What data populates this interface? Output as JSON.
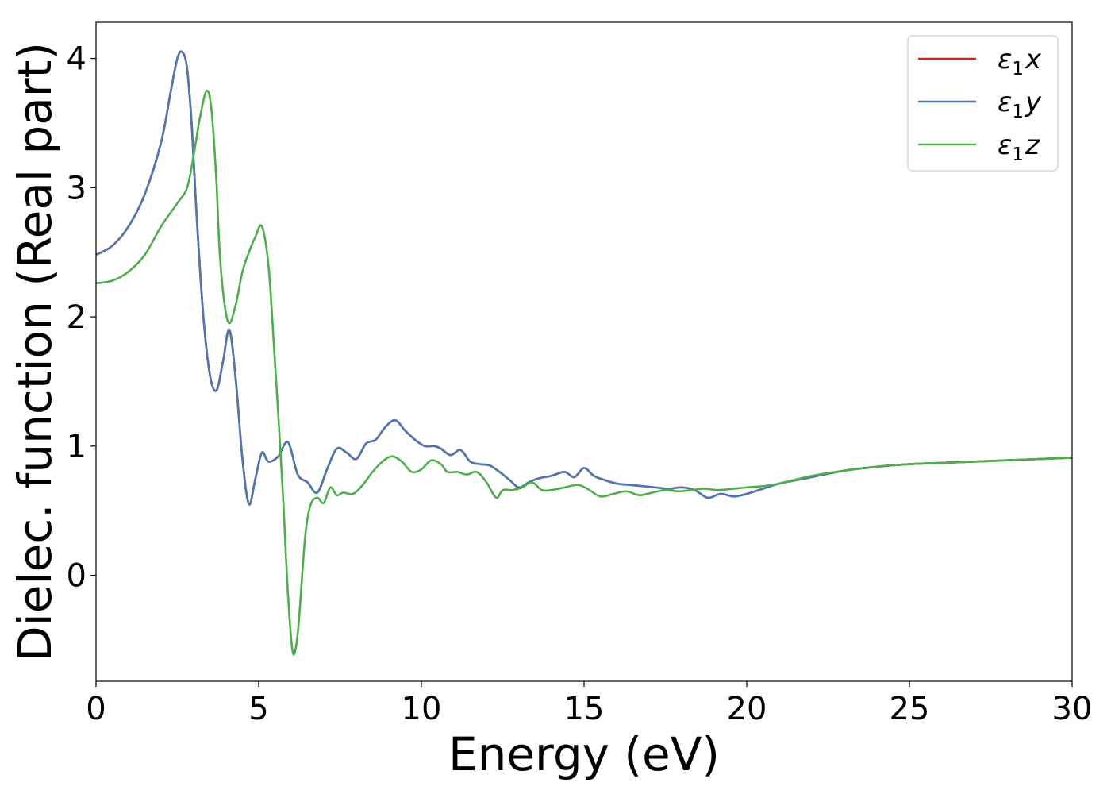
{
  "chart_data": {
    "type": "line",
    "xlabel": "Energy (eV)",
    "ylabel": "Dielec. function (Real part)",
    "xlim": [
      0,
      30
    ],
    "ylim": [
      -0.82,
      4.28
    ],
    "xticks": [
      0,
      5,
      10,
      15,
      20,
      25,
      30
    ],
    "yticks": [
      0,
      1,
      2,
      3,
      4
    ],
    "grid": false,
    "legend_position": "top-right",
    "series": [
      {
        "name": "ε₁x",
        "legend_base": "ε",
        "legend_sub": "1",
        "legend_suffix": "x",
        "color": "#e41a1c",
        "x": [
          0,
          0.5,
          1,
          1.5,
          2,
          2.3,
          2.5,
          2.65,
          2.8,
          2.95,
          3.1,
          3.3,
          3.5,
          3.7,
          3.9,
          4.1,
          4.3,
          4.5,
          4.7,
          4.9,
          5.1,
          5.3,
          5.6,
          5.9,
          6.2,
          6.5,
          6.8,
          7.1,
          7.4,
          7.7,
          8.0,
          8.3,
          8.6,
          8.9,
          9.2,
          9.5,
          9.8,
          10.1,
          10.4,
          10.6,
          10.9,
          11.2,
          11.5,
          11.8,
          12.1,
          12.4,
          12.7,
          13.0,
          13.3,
          13.6,
          14.0,
          14.4,
          14.7,
          15.0,
          15.3,
          15.6,
          16.0,
          16.4,
          16.8,
          17.2,
          17.6,
          18.0,
          18.4,
          18.8,
          19.2,
          19.6,
          20.0,
          20.5,
          21.0,
          22.0,
          23.0,
          24.0,
          25.0,
          26.0,
          27.0,
          28.0,
          29.0,
          30.0
        ],
        "y": [
          2.48,
          2.55,
          2.7,
          2.95,
          3.35,
          3.75,
          4.0,
          4.05,
          3.92,
          3.45,
          2.75,
          2.0,
          1.55,
          1.43,
          1.65,
          1.9,
          1.5,
          0.9,
          0.55,
          0.75,
          0.95,
          0.88,
          0.92,
          1.03,
          0.78,
          0.72,
          0.64,
          0.82,
          0.98,
          0.95,
          0.9,
          1.02,
          1.05,
          1.15,
          1.2,
          1.12,
          1.05,
          1.0,
          1.0,
          0.98,
          0.93,
          0.97,
          0.88,
          0.86,
          0.85,
          0.8,
          0.74,
          0.68,
          0.72,
          0.75,
          0.77,
          0.8,
          0.76,
          0.83,
          0.77,
          0.74,
          0.71,
          0.7,
          0.69,
          0.68,
          0.67,
          0.68,
          0.66,
          0.6,
          0.63,
          0.61,
          0.63,
          0.67,
          0.71,
          0.76,
          0.81,
          0.84,
          0.86,
          0.87,
          0.88,
          0.89,
          0.9,
          0.91
        ]
      },
      {
        "name": "ε₁y",
        "legend_base": "ε",
        "legend_sub": "1",
        "legend_suffix": "y",
        "color": "#4a78b1",
        "x": [
          0,
          0.5,
          1,
          1.5,
          2,
          2.3,
          2.5,
          2.65,
          2.8,
          2.95,
          3.1,
          3.3,
          3.5,
          3.7,
          3.9,
          4.1,
          4.3,
          4.5,
          4.7,
          4.9,
          5.1,
          5.3,
          5.6,
          5.9,
          6.2,
          6.5,
          6.8,
          7.1,
          7.4,
          7.7,
          8.0,
          8.3,
          8.6,
          8.9,
          9.2,
          9.5,
          9.8,
          10.1,
          10.4,
          10.6,
          10.9,
          11.2,
          11.5,
          11.8,
          12.1,
          12.4,
          12.7,
          13.0,
          13.3,
          13.6,
          14.0,
          14.4,
          14.7,
          15.0,
          15.3,
          15.6,
          16.0,
          16.4,
          16.8,
          17.2,
          17.6,
          18.0,
          18.4,
          18.8,
          19.2,
          19.6,
          20.0,
          20.5,
          21.0,
          22.0,
          23.0,
          24.0,
          25.0,
          26.0,
          27.0,
          28.0,
          29.0,
          30.0
        ],
        "y": [
          2.48,
          2.55,
          2.7,
          2.95,
          3.35,
          3.75,
          4.0,
          4.05,
          3.92,
          3.45,
          2.75,
          2.0,
          1.55,
          1.43,
          1.65,
          1.9,
          1.5,
          0.9,
          0.55,
          0.75,
          0.95,
          0.88,
          0.92,
          1.03,
          0.78,
          0.72,
          0.64,
          0.82,
          0.98,
          0.95,
          0.9,
          1.02,
          1.05,
          1.15,
          1.2,
          1.12,
          1.05,
          1.0,
          1.0,
          0.98,
          0.93,
          0.97,
          0.88,
          0.86,
          0.85,
          0.8,
          0.74,
          0.68,
          0.72,
          0.75,
          0.77,
          0.8,
          0.76,
          0.83,
          0.77,
          0.74,
          0.71,
          0.7,
          0.69,
          0.68,
          0.67,
          0.68,
          0.66,
          0.6,
          0.63,
          0.61,
          0.63,
          0.67,
          0.71,
          0.76,
          0.81,
          0.84,
          0.86,
          0.87,
          0.88,
          0.89,
          0.9,
          0.91
        ]
      },
      {
        "name": "ε₁z",
        "legend_base": "ε",
        "legend_sub": "1",
        "legend_suffix": "z",
        "color": "#4daf4a",
        "x": [
          0,
          0.5,
          1,
          1.5,
          2,
          2.5,
          2.8,
          3.0,
          3.2,
          3.4,
          3.55,
          3.7,
          3.8,
          3.95,
          4.1,
          4.3,
          4.5,
          4.7,
          4.9,
          5.1,
          5.3,
          5.45,
          5.6,
          5.75,
          5.9,
          6.05,
          6.2,
          6.35,
          6.45,
          6.6,
          6.8,
          7.0,
          7.2,
          7.4,
          7.6,
          7.9,
          8.2,
          8.5,
          8.8,
          9.1,
          9.4,
          9.7,
          10.0,
          10.3,
          10.6,
          10.8,
          11.1,
          11.4,
          11.7,
          12.0,
          12.3,
          12.5,
          12.8,
          13.1,
          13.4,
          13.7,
          14.0,
          14.4,
          14.8,
          15.1,
          15.5,
          15.9,
          16.3,
          16.7,
          17.1,
          17.5,
          17.9,
          18.3,
          18.7,
          19.1,
          19.6,
          20.0,
          20.5,
          21.0,
          22.0,
          23.0,
          24.0,
          25.0,
          26.0,
          27.0,
          28.0,
          29.0,
          30.0
        ],
        "y": [
          2.26,
          2.28,
          2.35,
          2.48,
          2.7,
          2.88,
          3.0,
          3.25,
          3.55,
          3.75,
          3.6,
          3.05,
          2.5,
          2.1,
          1.95,
          2.1,
          2.35,
          2.5,
          2.62,
          2.7,
          2.4,
          1.85,
          1.25,
          0.6,
          -0.15,
          -0.6,
          -0.45,
          0.05,
          0.35,
          0.55,
          0.6,
          0.56,
          0.68,
          0.62,
          0.64,
          0.63,
          0.7,
          0.8,
          0.88,
          0.92,
          0.88,
          0.8,
          0.82,
          0.89,
          0.86,
          0.8,
          0.8,
          0.78,
          0.8,
          0.72,
          0.6,
          0.66,
          0.66,
          0.68,
          0.72,
          0.66,
          0.66,
          0.68,
          0.7,
          0.67,
          0.61,
          0.63,
          0.65,
          0.62,
          0.64,
          0.66,
          0.65,
          0.66,
          0.67,
          0.66,
          0.67,
          0.68,
          0.69,
          0.71,
          0.77,
          0.81,
          0.84,
          0.86,
          0.87,
          0.88,
          0.89,
          0.9,
          0.91
        ]
      }
    ]
  }
}
